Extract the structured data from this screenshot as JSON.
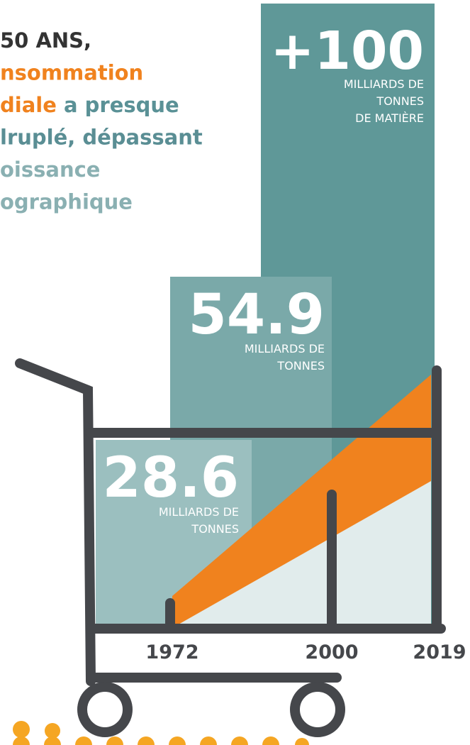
{
  "headline": {
    "lines": [
      [
        {
          "text": "50 ANS,",
          "color": "#333333"
        }
      ],
      [
        {
          "text": "nsommation",
          "color": "#f0821e"
        }
      ],
      [
        {
          "text": "diale",
          "color": "#f0821e"
        },
        {
          "text": " a presque",
          "color": "#5a9196"
        }
      ],
      [
        {
          "text": "lruplé, dépassant",
          "color": "#5a8e94"
        }
      ],
      [
        {
          "text": "oissance",
          "color": "#8ab0b2"
        }
      ],
      [
        {
          "text": "ographique",
          "color": "#8ab0b2"
        }
      ]
    ]
  },
  "bars": [
    {
      "value": "28.6",
      "unit": [
        "MILLIARDS DE",
        "TONNES"
      ]
    },
    {
      "value": "54.9",
      "unit": [
        "MILLIARDS DE",
        "TONNES"
      ]
    },
    {
      "value": "+100",
      "unit": [
        "MILLIARDS DE",
        "TONNES",
        "DE MATIÈRE"
      ]
    }
  ],
  "years": [
    "1972",
    "2000",
    "2019"
  ]
}
